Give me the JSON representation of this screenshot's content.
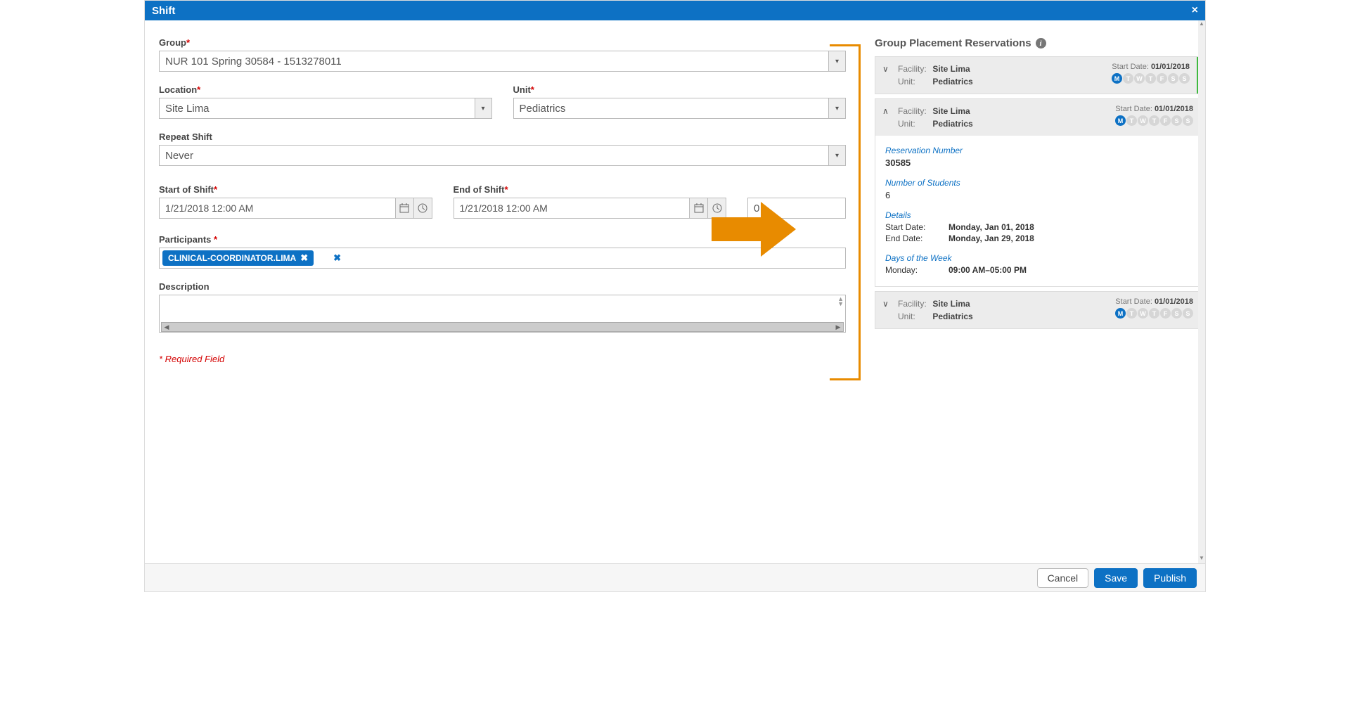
{
  "header": {
    "title": "Shift",
    "close": "×"
  },
  "form": {
    "group_label": "Group",
    "group_value": "NUR 101 Spring 30584 - 1513278011",
    "location_label": "Location",
    "location_value": "Site Lima",
    "unit_label": "Unit",
    "unit_value": "Pediatrics",
    "repeat_label": "Repeat Shift",
    "repeat_value": "Never",
    "start_label": "Start of Shift",
    "start_value": "1/21/2018 12:00 AM",
    "end_label": "End of Shift",
    "end_value": "1/21/2018 12:00 AM",
    "duration_value": "0",
    "participants_label": "Participants",
    "participant_chip": "CLINICAL-COORDINATOR.LIMA",
    "chip_x": "✖",
    "extra_x": "✖",
    "description_label": "Description",
    "required_note": "* Required Field",
    "asterisk": "*"
  },
  "reservations": {
    "title": "Group Placement Reservations",
    "info_i": "i",
    "facility_lbl": "Facility:",
    "unit_lbl": "Unit:",
    "start_date_lbl": "Start Date:",
    "days": [
      "M",
      "T",
      "W",
      "T",
      "F",
      "S",
      "S"
    ],
    "items": [
      {
        "facility": "Site Lima",
        "unit": "Pediatrics",
        "start_date": "01/01/2018",
        "expanded": false,
        "green": true,
        "active_day": 0
      },
      {
        "facility": "Site Lima",
        "unit": "Pediatrics",
        "start_date": "01/01/2018",
        "expanded": true,
        "green": false,
        "active_day": 0
      },
      {
        "facility": "Site Lima",
        "unit": "Pediatrics",
        "start_date": "01/01/2018",
        "expanded": false,
        "green": false,
        "active_day": 0
      }
    ],
    "detail": {
      "res_num_lbl": "Reservation Number",
      "res_num_val": "30585",
      "students_lbl": "Number of Students",
      "students_val": "6",
      "details_lbl": "Details",
      "start_date_lbl": "Start Date:",
      "start_date_val": "Monday, Jan 01, 2018",
      "end_date_lbl": "End Date:",
      "end_date_val": "Monday, Jan 29, 2018",
      "days_lbl": "Days of the Week",
      "monday_lbl": "Monday:",
      "monday_val": "09:00 AM–05:00 PM"
    }
  },
  "footer": {
    "cancel": "Cancel",
    "save": "Save",
    "publish": "Publish"
  },
  "colors": {
    "primary": "#0d71c4",
    "accent_orange": "#e88b00",
    "required_red": "#d40000",
    "green_bar": "#3eb93e"
  }
}
